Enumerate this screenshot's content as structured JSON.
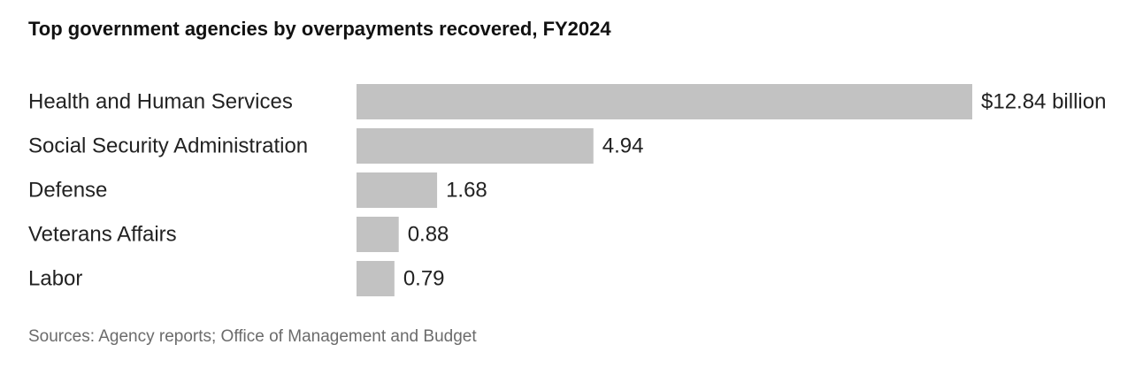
{
  "chart_data": {
    "type": "bar",
    "orientation": "horizontal",
    "title": "Top government agencies by overpayments recovered, FY2024",
    "categories": [
      "Health and Human Services",
      "Social Security Administration",
      "Defense",
      "Veterans Affairs",
      "Labor"
    ],
    "values": [
      12.84,
      4.94,
      1.68,
      0.88,
      0.79
    ],
    "value_labels": [
      "$12.84 billion",
      "4.94",
      "1.68",
      "0.88",
      "0.79"
    ],
    "unit": "billion",
    "bar_color": "#c2c2c2",
    "grid": false,
    "legend": "none",
    "source": "Sources: Agency reports; Office of Management and Budget"
  }
}
